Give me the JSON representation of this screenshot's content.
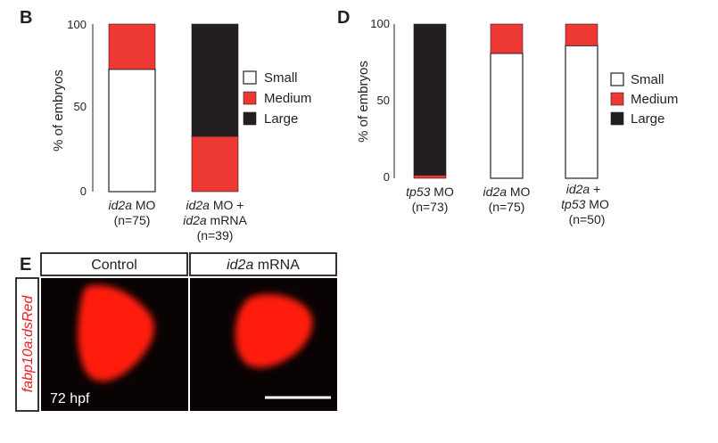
{
  "panels": {
    "b": "B",
    "d": "D",
    "e": "E"
  },
  "colors": {
    "small": "#ffffff",
    "medium": "#ed3833",
    "large": "#231f20",
    "image_bg": "#0a0304",
    "liver": "#ff1a0a"
  },
  "chart_data": [
    {
      "type": "bar",
      "stacked": true,
      "panel": "B",
      "ylabel": "% of embryos",
      "ylim": [
        0,
        100
      ],
      "yticks": [
        "0",
        "50",
        "100"
      ],
      "categories": [
        {
          "italic": "id2a",
          "rest": " MO",
          "line2_italic": "",
          "line2_rest": "(n=75)",
          "line3": ""
        },
        {
          "italic": "id2a",
          "rest": " MO +",
          "line2_italic": "id2a",
          "line2_rest": " mRNA",
          "line3": "(n=39)"
        }
      ],
      "series": [
        {
          "name": "Small",
          "values": [
            73,
            0
          ]
        },
        {
          "name": "Medium",
          "values": [
            27,
            33
          ]
        },
        {
          "name": "Large",
          "values": [
            0,
            67
          ]
        }
      ],
      "legend": [
        "Small",
        "Medium",
        "Large"
      ],
      "legend_position": "right"
    },
    {
      "type": "bar",
      "stacked": true,
      "panel": "D",
      "ylabel": "% of embryos",
      "ylim": [
        0,
        100
      ],
      "yticks": [
        "0",
        "50",
        "100"
      ],
      "categories": [
        {
          "italic": "tp53",
          "rest": " MO",
          "line2_italic": "",
          "line2_rest": "(n=73)",
          "line3": ""
        },
        {
          "italic": "id2a",
          "rest": " MO",
          "line2_italic": "",
          "line2_rest": "(n=75)",
          "line3": ""
        },
        {
          "italic": "id2a",
          "rest": " +",
          "line2_italic": "tp53",
          "line2_rest": " MO",
          "line3": "(n=50)"
        }
      ],
      "series": [
        {
          "name": "Small",
          "values": [
            0,
            81,
            86
          ]
        },
        {
          "name": "Medium",
          "values": [
            2,
            19,
            14
          ]
        },
        {
          "name": "Large",
          "values": [
            98,
            0,
            0
          ]
        }
      ],
      "legend": [
        "Small",
        "Medium",
        "Large"
      ],
      "legend_position": "right"
    }
  ],
  "images": {
    "row_label": "fabp10a:dsRed",
    "control_label": "Control",
    "treated_label_italic": "id2a",
    "treated_label_rest": " mRNA",
    "stage": "72 hpf"
  }
}
